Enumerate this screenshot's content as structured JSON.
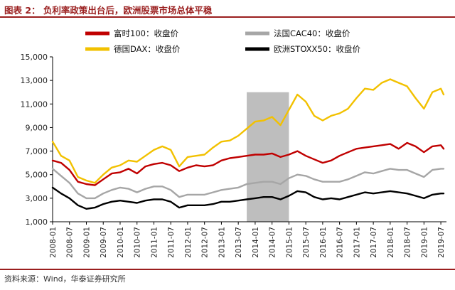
{
  "title": "图表 2： 负利率政策出台后，欧洲股票市场总体平稳",
  "source": "资料来源：Wind，华泰证券研究所",
  "chart_data": {
    "type": "line",
    "title": "图表 2： 负利率政策出台后，欧洲股票市场总体平稳",
    "ylim": [
      1000,
      15000
    ],
    "yticks": [
      1000,
      3000,
      5000,
      7000,
      9000,
      11000,
      13000,
      15000
    ],
    "ytick_labels": [
      "1,000",
      "3,000",
      "5,000",
      "7,000",
      "9,000",
      "11,000",
      "13,000",
      "15,000"
    ],
    "xtick_labels": [
      "2008-01",
      "2008-07",
      "2009-01",
      "2009-07",
      "2010-01",
      "2010-07",
      "2011-01",
      "2011-07",
      "2012-01",
      "2012-07",
      "2013-01",
      "2013-07",
      "2014-01",
      "2014-07",
      "2015-01",
      "2015-07",
      "2016-01",
      "2016-07",
      "2017-01",
      "2017-07",
      "2018-01",
      "2018-07",
      "2019-01",
      "2019-07"
    ],
    "shaded_region": {
      "from": "2013-10",
      "to": "2015-01",
      "color": "#b3b3b3"
    },
    "grid": false,
    "legend": "top",
    "x": [
      "2008-01",
      "2008-04",
      "2008-07",
      "2008-10",
      "2009-01",
      "2009-04",
      "2009-07",
      "2009-10",
      "2010-01",
      "2010-04",
      "2010-07",
      "2010-10",
      "2011-01",
      "2011-04",
      "2011-07",
      "2011-10",
      "2012-01",
      "2012-04",
      "2012-07",
      "2012-10",
      "2013-01",
      "2013-04",
      "2013-07",
      "2013-10",
      "2014-01",
      "2014-04",
      "2014-07",
      "2014-10",
      "2015-01",
      "2015-04",
      "2015-07",
      "2015-10",
      "2016-01",
      "2016-04",
      "2016-07",
      "2016-10",
      "2017-01",
      "2017-04",
      "2017-07",
      "2017-10",
      "2018-01",
      "2018-04",
      "2018-07",
      "2018-10",
      "2019-01",
      "2019-04",
      "2019-07",
      "2019-08"
    ],
    "series": [
      {
        "name": "富时100：收盘价",
        "color": "#c00000",
        "legend_row": 0,
        "legend_col": 0,
        "values": [
          6200,
          6000,
          5400,
          4400,
          4200,
          4100,
          4600,
          5100,
          5200,
          5500,
          5100,
          5700,
          5900,
          6000,
          5800,
          5300,
          5600,
          5800,
          5700,
          5800,
          6200,
          6400,
          6500,
          6600,
          6700,
          6700,
          6800,
          6500,
          6700,
          7000,
          6600,
          6300,
          6000,
          6200,
          6600,
          6900,
          7200,
          7300,
          7400,
          7500,
          7600,
          7200,
          7700,
          7400,
          6900,
          7400,
          7500,
          7200
        ]
      },
      {
        "name": "法国CAC40：收盘价",
        "color": "#a6a6a6",
        "legend_row": 0,
        "legend_col": 1,
        "values": [
          5500,
          4900,
          4300,
          3400,
          3000,
          3000,
          3400,
          3700,
          3900,
          3800,
          3500,
          3800,
          4000,
          4000,
          3700,
          3100,
          3300,
          3300,
          3300,
          3500,
          3700,
          3800,
          3900,
          4200,
          4300,
          4400,
          4400,
          4200,
          4700,
          5000,
          4900,
          4600,
          4400,
          4400,
          4400,
          4600,
          4900,
          5200,
          5100,
          5300,
          5500,
          5400,
          5400,
          5100,
          4800,
          5400,
          5500,
          5500
        ]
      },
      {
        "name": "德国DAX：收盘价",
        "color": "#f2c100",
        "legend_row": 1,
        "legend_col": 0,
        "values": [
          7800,
          6600,
          6200,
          4800,
          4500,
          4300,
          5000,
          5600,
          5800,
          6200,
          6100,
          6600,
          7100,
          7400,
          7100,
          5700,
          6500,
          6600,
          6700,
          7300,
          7800,
          7900,
          8300,
          8900,
          9500,
          9600,
          9900,
          9200,
          10500,
          11800,
          11200,
          10000,
          9600,
          10000,
          10200,
          10600,
          11500,
          12300,
          12200,
          12800,
          13100,
          12800,
          12500,
          11500,
          10600,
          12000,
          12300,
          11800
        ]
      },
      {
        "name": "欧洲STOXX50：收盘价",
        "color": "#000000",
        "legend_row": 1,
        "legend_col": 1,
        "values": [
          3900,
          3400,
          3000,
          2400,
          2100,
          2200,
          2500,
          2700,
          2800,
          2700,
          2600,
          2800,
          2900,
          2900,
          2700,
          2200,
          2400,
          2400,
          2400,
          2500,
          2700,
          2700,
          2800,
          2900,
          3000,
          3100,
          3100,
          2900,
          3200,
          3600,
          3500,
          3100,
          2900,
          3000,
          2900,
          3100,
          3300,
          3500,
          3400,
          3500,
          3600,
          3500,
          3400,
          3200,
          3000,
          3300,
          3400,
          3400
        ]
      }
    ]
  }
}
